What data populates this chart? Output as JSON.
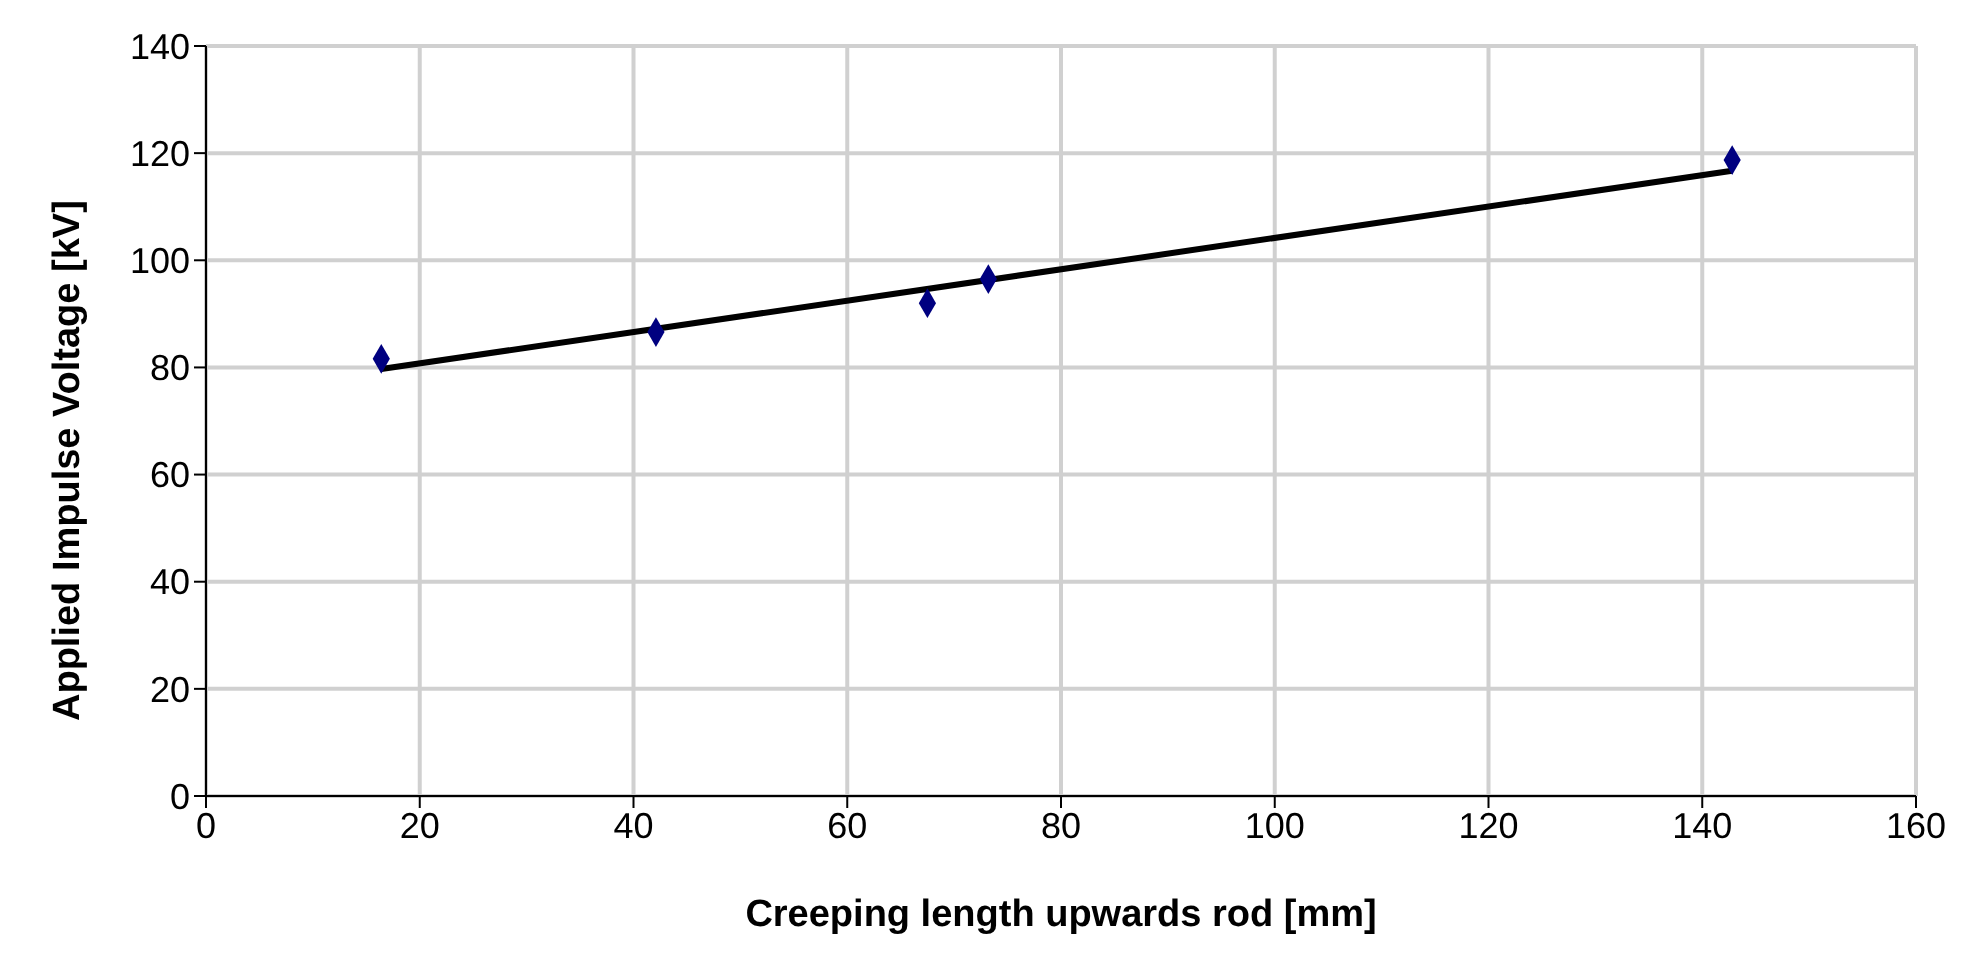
{
  "chart_data": {
    "type": "scatter",
    "xlabel": "Creeping length upwards rod [mm]",
    "ylabel": "Applied Impulse Voltage [kV]",
    "xlim": [
      0,
      160
    ],
    "xticks": [
      0,
      20,
      40,
      60,
      80,
      100,
      120,
      140,
      160
    ],
    "ylim": [
      0,
      140
    ],
    "yticks": [
      0,
      20,
      40,
      60,
      80,
      100,
      120,
      140
    ],
    "grid": true,
    "legend": false,
    "marker": "diamond",
    "series": [
      {
        "color": "#000080",
        "x": [
          16.4,
          42.1,
          67.5,
          73.2,
          142.8
        ],
        "values": [
          81.6,
          86.6,
          92,
          96.5,
          118.7
        ]
      },
      {
        "type": "line",
        "color": "#000000",
        "x": [
          16.4,
          142.8
        ],
        "values": [
          79.7,
          116.7
        ],
        "marker": "none",
        "line_style": "solid"
      }
    ]
  }
}
